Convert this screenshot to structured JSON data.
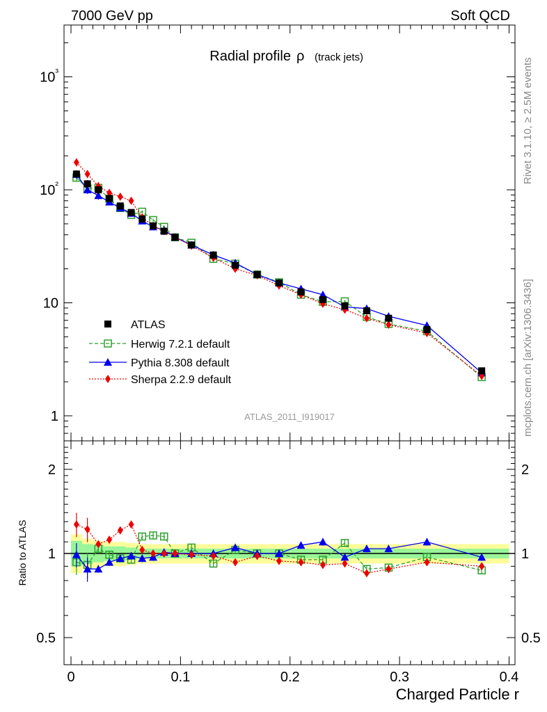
{
  "header": {
    "left": "7000 GeV pp",
    "right": "Soft QCD"
  },
  "side_labels": {
    "rivet": "Rivet 3.1.10, ≥ 2.5M events",
    "mcplots": "mcplots.cern.ch [arXiv:1306.3436]"
  },
  "analysis_id": "ATLAS_2011_I919017",
  "chart_data": [
    {
      "type": "scatter",
      "panel": "main",
      "title": "Radial profile",
      "title_symbol": "ρ",
      "subtitle": "(track jets)",
      "yscale": "log",
      "ylim": [
        0.6,
        3000
      ],
      "xlim": [
        -0.01,
        0.41
      ],
      "y_tick_labels": [
        "1",
        "10",
        "10²",
        "10³"
      ],
      "x": [
        0.005,
        0.015,
        0.025,
        0.035,
        0.045,
        0.055,
        0.065,
        0.075,
        0.085,
        0.095,
        0.11,
        0.13,
        0.15,
        0.17,
        0.19,
        0.21,
        0.23,
        0.25,
        0.27,
        0.29,
        0.325,
        0.375
      ],
      "series": [
        {
          "name": "ATLAS",
          "color": "#000000",
          "marker": "square-filled",
          "line": "none",
          "values": [
            138,
            113,
            100,
            84,
            72,
            63,
            55,
            48,
            43,
            38,
            32.5,
            26.5,
            21.5,
            17.8,
            15.0,
            12.5,
            10.7,
            9.4,
            8.5,
            7.3,
            5.8,
            2.5
          ]
        },
        {
          "name": "Herwig 7.2.1 default",
          "color": "#2ca02c",
          "marker": "square-open",
          "line": "dashed",
          "values": [
            128,
            103,
            104,
            83,
            69,
            60,
            64,
            54,
            47,
            38,
            34,
            24.5,
            22.2,
            17.8,
            15.2,
            11.8,
            10.2,
            10.3,
            7.5,
            6.5,
            5.6,
            2.2
          ]
        },
        {
          "name": "Pythia 8.308 default",
          "color": "#0000ee",
          "marker": "triangle",
          "line": "solid",
          "values": [
            137,
            100,
            89,
            78,
            69,
            62,
            53,
            47,
            44,
            38,
            32.5,
            26.5,
            22.5,
            17.8,
            15.0,
            13.3,
            11.8,
            9.2,
            8.9,
            7.6,
            6.3,
            2.4
          ]
        },
        {
          "name": "Sherpa 2.2.9 default",
          "color": "#ee0000",
          "marker": "diamond",
          "line": "dotted",
          "values": [
            175,
            138,
            108,
            94,
            87,
            80,
            57,
            48,
            43,
            38,
            32,
            25,
            20,
            17.5,
            14.2,
            11.8,
            9.8,
            8.7,
            7.3,
            6.4,
            5.4,
            2.25
          ]
        }
      ]
    },
    {
      "type": "scatter",
      "panel": "ratio",
      "ylabel": "Ratio to ATLAS",
      "xlabel": "Charged Particle r",
      "ylim": [
        0.42,
        2.4
      ],
      "xlim": [
        -0.01,
        0.41
      ],
      "y_tick_labels": [
        "0.5",
        "1",
        "2"
      ],
      "x_tick_labels": [
        "0",
        "0.1",
        "0.2",
        "0.3",
        "0.4"
      ],
      "x": [
        0.005,
        0.015,
        0.025,
        0.035,
        0.045,
        0.055,
        0.065,
        0.075,
        0.085,
        0.095,
        0.11,
        0.13,
        0.15,
        0.17,
        0.19,
        0.21,
        0.23,
        0.25,
        0.27,
        0.29,
        0.325,
        0.375
      ],
      "series": [
        {
          "name": "Herwig 7.2.1 default",
          "color": "#2ca02c",
          "marker": "square-open",
          "line": "dashed",
          "values": [
            0.93,
            0.91,
            1.04,
            0.99,
            0.96,
            0.95,
            1.15,
            1.16,
            1.15,
            1.0,
            1.05,
            0.92,
            1.03,
            1.0,
            1.0,
            0.95,
            0.95,
            1.09,
            0.88,
            0.89,
            0.97,
            0.87
          ]
        },
        {
          "name": "Pythia 8.308 default",
          "color": "#0000ee",
          "marker": "triangle",
          "line": "solid",
          "values": [
            0.99,
            0.88,
            0.88,
            0.93,
            0.96,
            0.98,
            0.96,
            0.97,
            1.01,
            1.0,
            1.0,
            1.0,
            1.05,
            1.0,
            1.0,
            1.07,
            1.1,
            0.97,
            1.04,
            1.04,
            1.1,
            0.97
          ]
        },
        {
          "name": "Sherpa 2.2.9 default",
          "color": "#ee0000",
          "marker": "diamond",
          "line": "dotted",
          "values": [
            1.27,
            1.22,
            1.08,
            1.12,
            1.21,
            1.27,
            1.03,
            1.0,
            1.0,
            1.0,
            0.99,
            0.98,
            0.93,
            0.98,
            0.94,
            0.93,
            0.91,
            0.92,
            0.85,
            0.88,
            0.93,
            0.9
          ]
        }
      ],
      "band_green": [
        [
          0.9,
          1.11
        ],
        [
          0.92,
          1.08
        ],
        [
          0.93,
          1.07
        ],
        [
          0.94,
          1.06
        ],
        [
          0.94,
          1.06
        ],
        [
          0.95,
          1.05
        ],
        [
          0.96,
          1.04
        ],
        [
          0.96,
          1.04
        ],
        [
          0.96,
          1.04
        ],
        [
          0.96,
          1.04
        ],
        [
          0.96,
          1.04
        ],
        [
          0.96,
          1.04
        ],
        [
          0.96,
          1.04
        ],
        [
          0.96,
          1.04
        ],
        [
          0.96,
          1.04
        ],
        [
          0.96,
          1.04
        ],
        [
          0.96,
          1.04
        ],
        [
          0.96,
          1.04
        ],
        [
          0.96,
          1.04
        ],
        [
          0.96,
          1.04
        ],
        [
          0.96,
          1.04
        ],
        [
          0.96,
          1.04
        ]
      ],
      "band_yellow": [
        [
          0.85,
          1.17
        ],
        [
          0.88,
          1.13
        ],
        [
          0.89,
          1.11
        ],
        [
          0.9,
          1.1
        ],
        [
          0.9,
          1.1
        ],
        [
          0.91,
          1.09
        ],
        [
          0.92,
          1.08
        ],
        [
          0.92,
          1.08
        ],
        [
          0.92,
          1.08
        ],
        [
          0.92,
          1.08
        ],
        [
          0.92,
          1.08
        ],
        [
          0.92,
          1.08
        ],
        [
          0.92,
          1.08
        ],
        [
          0.92,
          1.08
        ],
        [
          0.92,
          1.08
        ],
        [
          0.92,
          1.08
        ],
        [
          0.92,
          1.08
        ],
        [
          0.92,
          1.08
        ],
        [
          0.92,
          1.08
        ],
        [
          0.92,
          1.08
        ],
        [
          0.92,
          1.08
        ],
        [
          0.92,
          1.08
        ]
      ]
    }
  ]
}
